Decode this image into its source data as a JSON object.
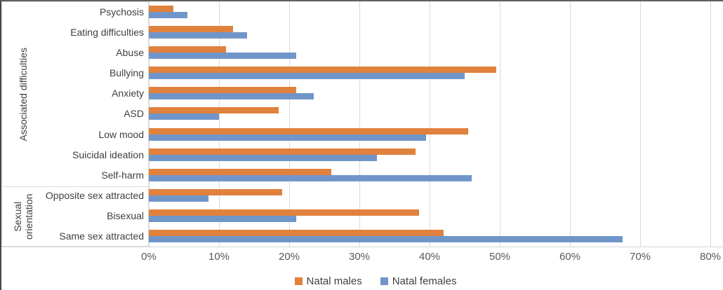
{
  "chart_data": {
    "type": "bar",
    "orientation": "horizontal",
    "title": "",
    "x_axis": {
      "min": 0,
      "max": 80,
      "tick_step": 10,
      "unit": "%",
      "ticks": [
        "0%",
        "10%",
        "20%",
        "30%",
        "40%",
        "50%",
        "60%",
        "70%",
        "80%"
      ],
      "grid": true
    },
    "category_groups": [
      {
        "label": "Associated difficulties",
        "categories": [
          "Psychosis",
          "Eating difficulties",
          "Abuse",
          "Bullying",
          "Anxiety",
          "ASD",
          "Low mood",
          "Suicidal ideation",
          "Self-harm"
        ]
      },
      {
        "label": "Sexual orientation",
        "categories": [
          "Opposite sex attracted",
          "Bisexual",
          "Same sex attracted"
        ]
      }
    ],
    "categories": [
      "Psychosis",
      "Eating difficulties",
      "Abuse",
      "Bullying",
      "Anxiety",
      "ASD",
      "Low mood",
      "Suicidal ideation",
      "Self-harm",
      "Opposite sex attracted",
      "Bisexual",
      "Same sex attracted"
    ],
    "series": [
      {
        "name": "Natal males",
        "color": "#e0813d",
        "values": [
          3.5,
          12,
          11,
          49.5,
          21,
          18.5,
          45.5,
          38,
          26,
          19,
          38.5,
          42
        ]
      },
      {
        "name": "Natal females",
        "color": "#7096c9",
        "values": [
          5.5,
          14,
          21,
          45,
          23.5,
          10,
          39.5,
          32.5,
          46,
          8.5,
          21,
          67.5
        ]
      }
    ],
    "legend": {
      "position": "bottom",
      "items": [
        "Natal males",
        "Natal females"
      ]
    },
    "colors": {
      "gridline": "#d9d9d9",
      "category_text": "#3f3f3f",
      "tick_text": "#595959"
    }
  }
}
